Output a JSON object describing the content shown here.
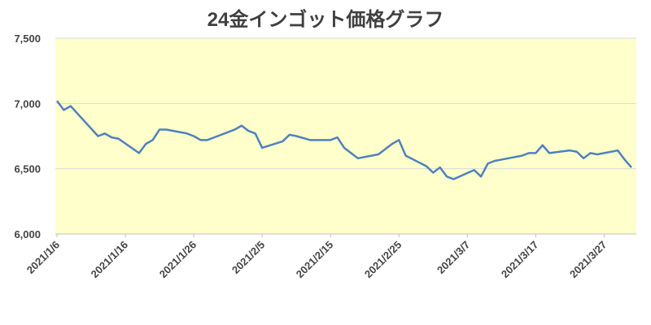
{
  "chart_data": {
    "type": "line",
    "title": "24金インゴット価格グラフ",
    "x": [
      "2021/1/6",
      "2021/1/7",
      "2021/1/8",
      "2021/1/12",
      "2021/1/13",
      "2021/1/14",
      "2021/1/15",
      "2021/1/18",
      "2021/1/19",
      "2021/1/20",
      "2021/1/21",
      "2021/1/22",
      "2021/1/25",
      "2021/1/26",
      "2021/1/27",
      "2021/1/28",
      "2021/1/29",
      "2021/2/1",
      "2021/2/2",
      "2021/2/3",
      "2021/2/4",
      "2021/2/5",
      "2021/2/8",
      "2021/2/9",
      "2021/2/10",
      "2021/2/12",
      "2021/2/15",
      "2021/2/16",
      "2021/2/17",
      "2021/2/18",
      "2021/2/19",
      "2021/2/22",
      "2021/2/24",
      "2021/2/25",
      "2021/2/26",
      "2021/3/1",
      "2021/3/2",
      "2021/3/3",
      "2021/3/4",
      "2021/3/5",
      "2021/3/8",
      "2021/3/9",
      "2021/3/10",
      "2021/3/11",
      "2021/3/12",
      "2021/3/15",
      "2021/3/16",
      "2021/3/17",
      "2021/3/18",
      "2021/3/19",
      "2021/3/22",
      "2021/3/23",
      "2021/3/24",
      "2021/3/25",
      "2021/3/26",
      "2021/3/29",
      "2021/3/30",
      "2021/3/31"
    ],
    "values": [
      7020,
      6950,
      6980,
      6750,
      6770,
      6740,
      6730,
      6620,
      6690,
      6720,
      6800,
      6800,
      6770,
      6750,
      6720,
      6720,
      6740,
      6800,
      6830,
      6790,
      6770,
      6660,
      6710,
      6760,
      6750,
      6720,
      6720,
      6740,
      6660,
      6620,
      6580,
      6610,
      6690,
      6720,
      6600,
      6520,
      6470,
      6510,
      6440,
      6420,
      6490,
      6440,
      6540,
      6560,
      6570,
      6600,
      6620,
      6620,
      6680,
      6620,
      6640,
      6630,
      6580,
      6620,
      6610,
      6640,
      6570,
      6510
    ],
    "color": "#4f81bd",
    "xlim": [
      "2021/1/6",
      "2021/3/31"
    ],
    "xticks": [
      "2021/1/6",
      "2021/1/16",
      "2021/1/26",
      "2021/2/5",
      "2021/2/15",
      "2021/2/25",
      "2021/3/7",
      "2021/3/17",
      "2021/3/27"
    ],
    "ylim": [
      6000,
      7500
    ],
    "yticks": [
      {
        "value": 6000,
        "label": "6,000"
      },
      {
        "value": 6500,
        "label": "6,500"
      },
      {
        "value": 7000,
        "label": "7,000"
      },
      {
        "value": 7500,
        "label": "7,500"
      }
    ],
    "grid": true,
    "background": "#ffffcc"
  }
}
